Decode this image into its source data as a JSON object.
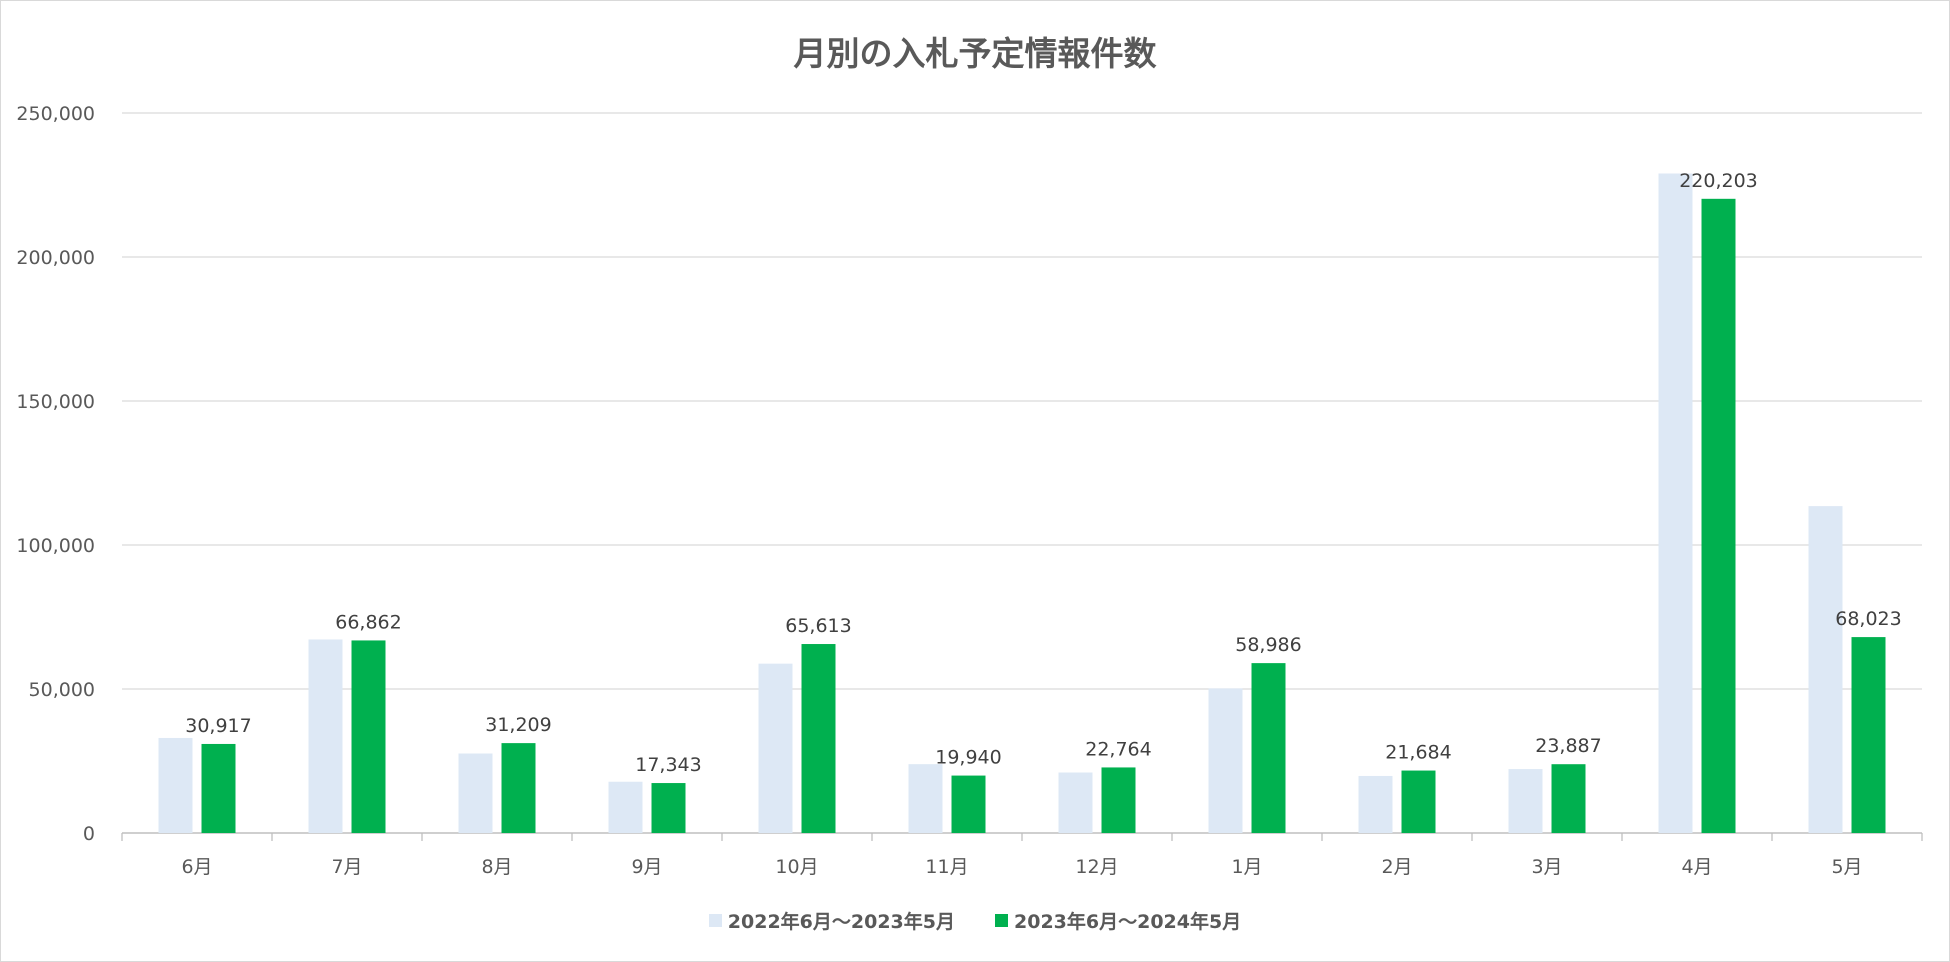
{
  "chart_data": {
    "type": "bar",
    "title": "月別の入札予定情報件数",
    "categories": [
      "6月",
      "7月",
      "8月",
      "9月",
      "10月",
      "11月",
      "12月",
      "1月",
      "2月",
      "3月",
      "4月",
      "5月"
    ],
    "series": [
      {
        "name": "2022年6月～2023年5月",
        "color": "#dde8f5",
        "values": [
          33000,
          67200,
          27600,
          17800,
          58800,
          23900,
          21000,
          50200,
          19800,
          22200,
          229000,
          113500
        ]
      },
      {
        "name": "2023年6月～2024年5月",
        "color": "#00b04f",
        "values": [
          30917,
          66862,
          31209,
          17343,
          65613,
          19940,
          22764,
          58986,
          21684,
          23887,
          220203,
          68023
        ],
        "data_labels": [
          "30,917",
          "66,862",
          "31,209",
          "17,343",
          "65,613",
          "19,940",
          "22,764",
          "58,986",
          "21,684",
          "23,887",
          "220,203",
          "68,023"
        ]
      }
    ],
    "ylim": [
      0,
      250000
    ],
    "yticks": [
      0,
      50000,
      100000,
      150000,
      200000,
      250000
    ],
    "ytick_labels": [
      "0",
      "50,000",
      "100,000",
      "150,000",
      "200,000",
      "250,000"
    ],
    "grid": true,
    "legend_position": "bottom",
    "xlabel": "",
    "ylabel": ""
  }
}
